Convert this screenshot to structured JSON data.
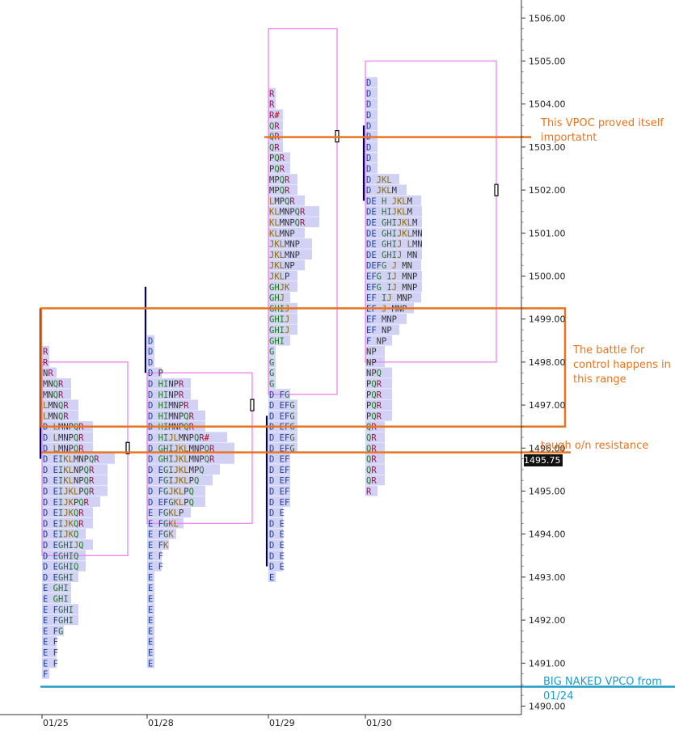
{
  "chart_data": {
    "type": "market-profile",
    "y_axis": {
      "ticks": [
        "1490.00",
        "1491.00",
        "1492.00",
        "1493.00",
        "1494.00",
        "1495.00",
        "1496.00",
        "1497.00",
        "1498.00",
        "1499.00",
        "1500.00",
        "1501.00",
        "1502.00",
        "1503.00",
        "1504.00",
        "1505.00",
        "1506.00"
      ],
      "range": [
        1490,
        1506.3
      ],
      "last_price": "1495.75"
    },
    "x_axis": {
      "labels": [
        "01/25",
        "01/28",
        "01/29",
        "01/30"
      ]
    },
    "sessions": [
      {
        "date": "01/25",
        "lo": 1490.75,
        "rows": [
          "F",
          "E F",
          "E F",
          "E F",
          "E FG",
          "E FGHI",
          "E FGHI",
          "E GHI",
          "E GHI",
          "D EGHI",
          "D EGHIQ",
          "D EGHIQ",
          "D EGHIJQ",
          "D EIJKQ",
          "D EIJKQR",
          "D EIJKQR",
          "D EIJKPQR",
          "D EIJKLPQR",
          "D EIKLNPQR",
          "D EIKLNPQR",
          "D EIKLMNPQR",
          "D LMNPQR",
          "D LMNPQR",
          "D LMNPQR",
          "LMNQR",
          "LMNQR",
          "MNQR",
          "MNQR",
          "NR",
          "R",
          "R"
        ],
        "ib": [
          1495.75,
          1499.25
        ],
        "value_area": [
          1493.5,
          1498.0
        ],
        "poc": 1496.0
      },
      {
        "date": "01/28",
        "lo": 1491.0,
        "rows": [
          "E",
          "E",
          "E",
          "E",
          "E",
          "E",
          "E",
          "E",
          "E",
          "E F",
          "E F",
          "E FK",
          "E FGK",
          "E FGKL",
          "E FGKLP",
          "D EFGKLPQ",
          "D FGJKLPQ",
          "D FGIJKLPQ",
          "D EGIJKLMPQ",
          "D GHIJKLMNPQR",
          "D GHIJKLMNPQR",
          "D HIJLMNPQR#",
          "D HIMNPQR",
          "D HIMNPQR",
          "D HIMNPR",
          "D HINPR",
          "D HINPR",
          "D P",
          "D",
          "D",
          "D"
        ],
        "ib": [
          1497.75,
          1499.75
        ],
        "value_area": [
          1494.25,
          1497.75
        ],
        "poc": 1497.0
      },
      {
        "date": "01/29",
        "lo": 1493.0,
        "rows": [
          "E",
          "D E",
          "D E",
          "D E",
          "D E",
          "D E",
          "D E",
          "D EF",
          "D EF",
          "D EF",
          "D EF",
          "D EF",
          "D EFG",
          "D EFG",
          "D EFG",
          "D EFG",
          "D EFG",
          "D FG",
          "G",
          "G",
          "G",
          "G",
          "GHI",
          "GHIJ",
          "GHIJ",
          "GHIJ",
          "GHJ",
          "GHJK",
          "JKLP",
          "JKLNP",
          "JKLMNP",
          "JKLMNP",
          "KLMNP",
          "KLMNPQR",
          "KLMNPQR",
          "LMPQR",
          "MPQR",
          "MPQR",
          "PQR",
          "PQR",
          "QR",
          "QR",
          "QR",
          "R#",
          "R",
          "R"
        ],
        "ib": [
          1493.25,
          1496.75
        ],
        "value_area": [
          1497.25,
          1505.75
        ],
        "poc": 1503.25
      },
      {
        "date": "01/30",
        "lo": 1495.0,
        "rows": [
          "R",
          "QR",
          "QR",
          "QR",
          "QR",
          "QR",
          "QR",
          "PQR",
          "PQR",
          "PQR",
          "PQR",
          "NPQ",
          "NP",
          "NP",
          "F NP",
          "EF NP",
          "EF MNP",
          "EF J MNP",
          "EF IJ MNP",
          "EFG IJ MNP",
          "EFG IJ MNP",
          "DEFG J MN",
          "DE GHIJ MN",
          "DE GHIJ LMN",
          "DE GHIJKLMN",
          "DE GHIJKLM",
          "DE HIJKLM",
          "DE H JKLM",
          "D JKLM",
          "D JKL",
          "D",
          "D",
          "D",
          "D",
          "D",
          "D",
          "D",
          "D",
          "D"
        ],
        "ib": [
          1501.75,
          1503.5
        ],
        "value_area": [
          1498.0,
          1505.0
        ],
        "poc": 1502.0
      }
    ],
    "annotations": [
      {
        "text": "This VPOC proved itself importatnt",
        "price": 1503.25
      },
      {
        "text": "The battle for control happens in this range",
        "range": [
          1496.5,
          1499.25
        ]
      },
      {
        "text": "tough o/n resistance",
        "price": 1495.9
      },
      {
        "text": "BIG NAKED VPCO from 01/24",
        "price": 1490.45
      }
    ],
    "colors": {
      "annotation": "#e8741f",
      "naked_vpoc": "#1e9bc9",
      "value_area": "#ee82ee",
      "volume_bar": "#c9c9f5",
      "initial_balance": "#000066"
    },
    "grid": false
  },
  "notes": {
    "vpoc": "This VPOC proved itself importatnt",
    "battle": "The battle for control happens in this range",
    "resistance": "tough o/n resistance",
    "naked_vpoc": "BIG NAKED VPCO from 01/24"
  },
  "price_tag": "1495.75"
}
